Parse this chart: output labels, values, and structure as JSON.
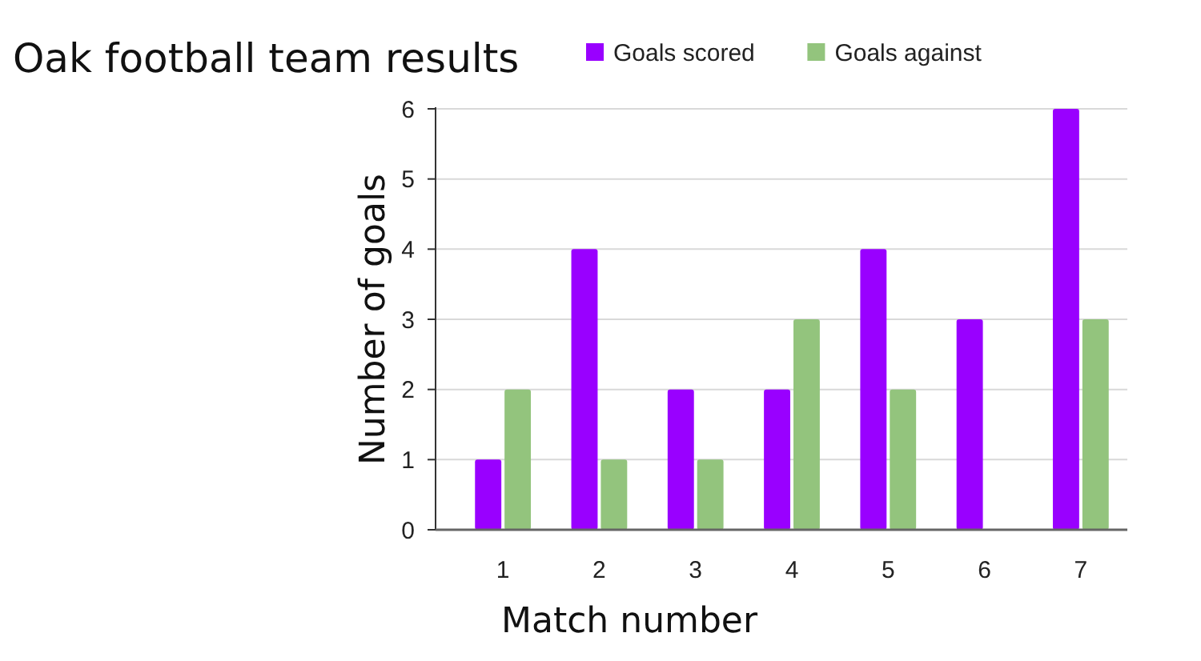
{
  "chart_data": {
    "type": "bar",
    "title": "Oak football team results",
    "xlabel": "Match number",
    "ylabel": "Number of goals",
    "categories": [
      "1",
      "2",
      "3",
      "4",
      "5",
      "6",
      "7"
    ],
    "series": [
      {
        "name": "Goals scored",
        "color": "#9900ff",
        "values": [
          1,
          4,
          2,
          2,
          4,
          3,
          6
        ]
      },
      {
        "name": "Goals against",
        "color": "#93c47d",
        "values": [
          2,
          1,
          1,
          3,
          2,
          0,
          3
        ]
      }
    ],
    "ylim": [
      0,
      6
    ],
    "yticks": [
      0,
      1,
      2,
      3,
      4,
      5,
      6
    ],
    "grid": "y",
    "legend": "top"
  }
}
